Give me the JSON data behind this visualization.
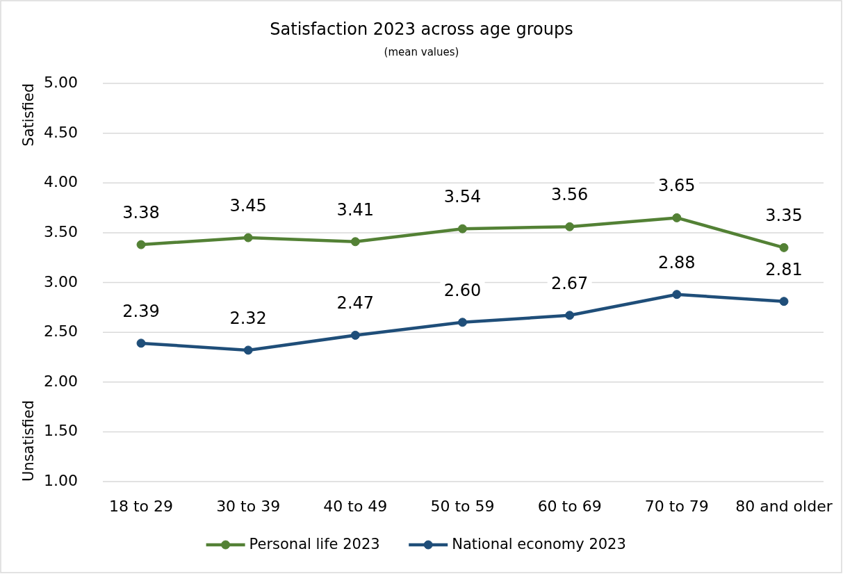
{
  "chart_data": {
    "type": "line",
    "title": "Satisfaction 2023 across age groups",
    "subtitle": "(mean values)",
    "categories": [
      "18 to 29",
      "30 to 39",
      "40 to 49",
      "50 to 59",
      "60 to 69",
      "70 to 79",
      "80 and older"
    ],
    "series": [
      {
        "name": "Personal life 2023",
        "color": "#538135",
        "values": [
          3.38,
          3.45,
          3.41,
          3.54,
          3.56,
          3.65,
          3.35
        ],
        "value_labels": [
          "3.38",
          "3.45",
          "3.41",
          "3.54",
          "3.56",
          "3.65",
          "3.35"
        ]
      },
      {
        "name": "National economy 2023",
        "color": "#1f4e79",
        "values": [
          2.39,
          2.32,
          2.47,
          2.6,
          2.67,
          2.88,
          2.81
        ],
        "value_labels": [
          "2.39",
          "2.32",
          "2.47",
          "2.60",
          "2.67",
          "2.88",
          "2.81"
        ]
      }
    ],
    "ylim": [
      1,
      5
    ],
    "yticks": [
      {
        "value": 1,
        "label": "1.00"
      },
      {
        "value": 1.5,
        "label": "1.50"
      },
      {
        "value": 2,
        "label": "2.00"
      },
      {
        "value": 2.5,
        "label": "2.50"
      },
      {
        "value": 3,
        "label": "3.00"
      },
      {
        "value": 3.5,
        "label": "3.50"
      },
      {
        "value": 4,
        "label": "4.00"
      },
      {
        "value": 4.5,
        "label": "4.50"
      },
      {
        "value": 5,
        "label": "5.00"
      }
    ],
    "annotations": [
      "Satisfied",
      "Unsatisfied"
    ],
    "grid": "y",
    "legend": "bottom",
    "marker": "circle",
    "line_style": "solid"
  }
}
